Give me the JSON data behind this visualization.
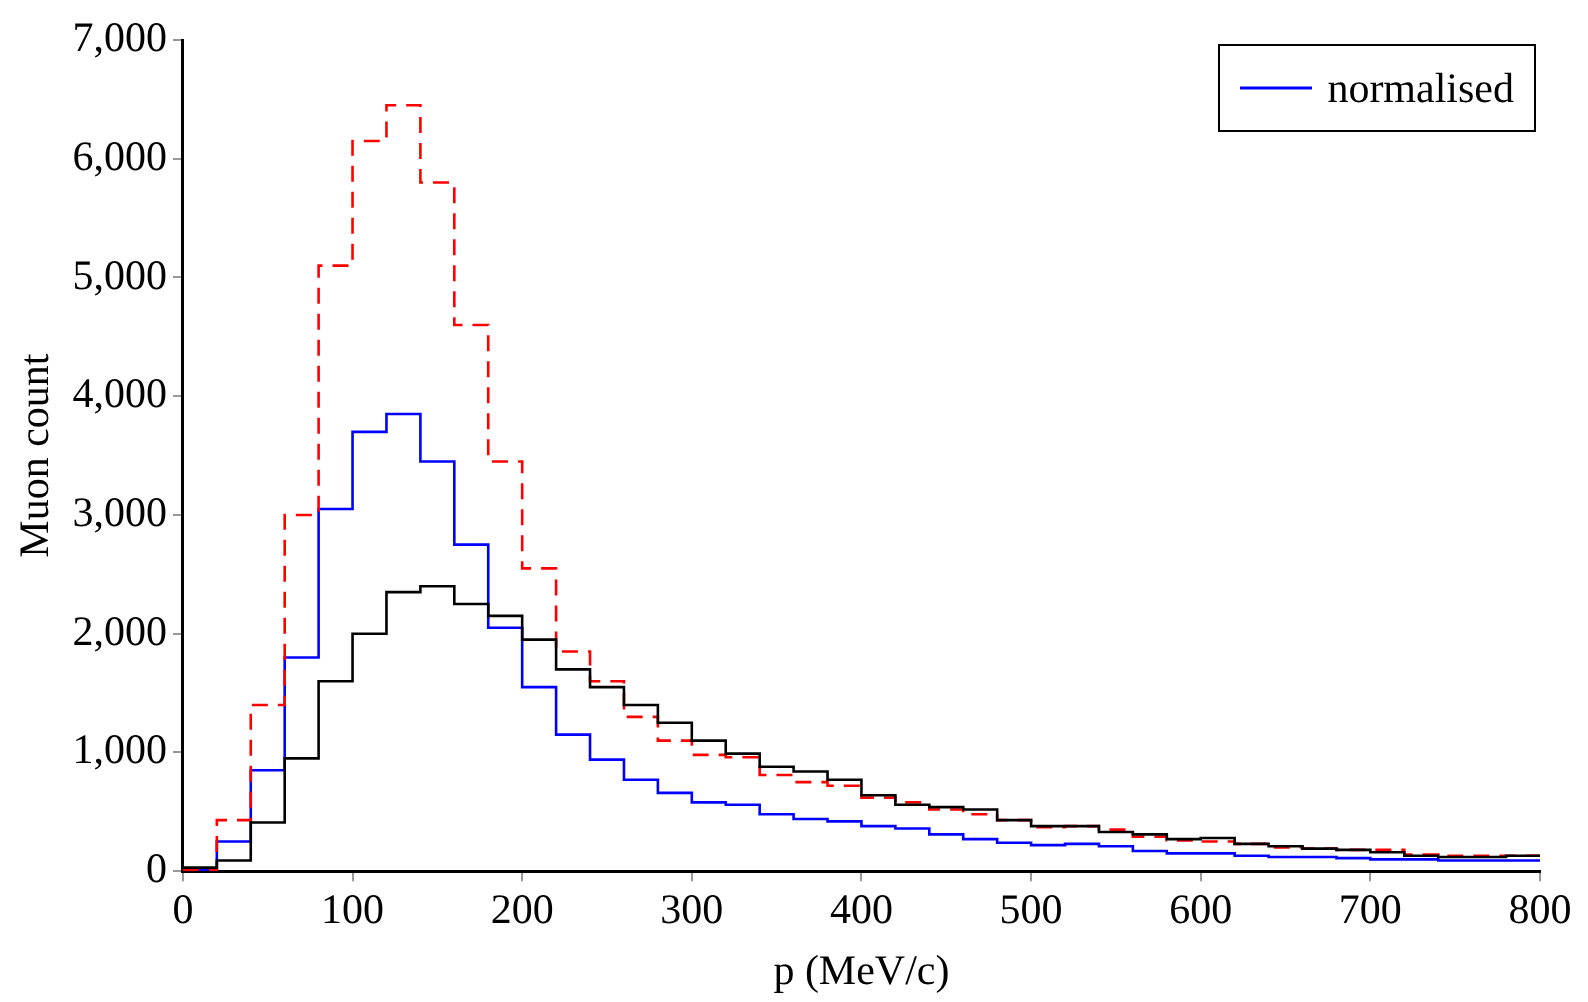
{
  "chart_data": {
    "type": "histogram",
    "xlabel": "p (MeV/c)",
    "ylabel": "Muon count",
    "bins": [
      0,
      20,
      40,
      60,
      80,
      100,
      120,
      140,
      160,
      180,
      200,
      220,
      240,
      260,
      280,
      300,
      320,
      340,
      360,
      380,
      400,
      420,
      440,
      460,
      480,
      500,
      520,
      540,
      560,
      580,
      600,
      620,
      640,
      660,
      680,
      700,
      720,
      740,
      760,
      780,
      800
    ],
    "series": [
      {
        "color": "#000000",
        "line_style": "solid",
        "values": [
          30,
          90,
          410,
          950,
          1600,
          2000,
          2350,
          2400,
          2250,
          2150,
          1950,
          1700,
          1550,
          1400,
          1250,
          1100,
          990,
          880,
          840,
          770,
          640,
          560,
          540,
          520,
          430,
          380,
          380,
          330,
          310,
          270,
          280,
          230,
          210,
          190,
          180,
          160,
          130,
          120,
          120,
          130
        ]
      },
      {
        "color": "#ff0000",
        "line_style": "dashed",
        "values": [
          10,
          430,
          1400,
          3000,
          5100,
          6150,
          6450,
          5800,
          4600,
          3450,
          2550,
          1850,
          1600,
          1300,
          1100,
          980,
          960,
          810,
          750,
          720,
          620,
          580,
          520,
          480,
          430,
          370,
          380,
          350,
          290,
          260,
          250,
          230,
          200,
          190,
          180,
          180,
          140,
          130,
          130,
          130
        ]
      },
      {
        "name": "normalised",
        "color": "#0000ff",
        "line_style": "solid",
        "values": [
          10,
          250,
          850,
          1800,
          3050,
          3700,
          3850,
          3450,
          2750,
          2050,
          1550,
          1150,
          940,
          770,
          660,
          580,
          560,
          480,
          440,
          420,
          380,
          360,
          310,
          270,
          240,
          220,
          230,
          210,
          170,
          150,
          150,
          130,
          120,
          120,
          110,
          100,
          100,
          90,
          90,
          90
        ]
      }
    ],
    "xlim": [
      0,
      800
    ],
    "xticks": [
      0,
      100,
      200,
      300,
      400,
      500,
      600,
      700,
      800
    ],
    "ylim": [
      0,
      7000
    ],
    "yticks": [
      0,
      {
        "value": 1000,
        "label": "1,000"
      },
      {
        "value": 2000,
        "label": "2,000"
      },
      {
        "value": 3000,
        "label": "3,000"
      },
      {
        "value": 4000,
        "label": "4,000"
      },
      {
        "value": 5000,
        "label": "5,000"
      },
      {
        "value": 6000,
        "label": "6,000"
      },
      {
        "value": 7000,
        "label": "7,000"
      }
    ],
    "grid": false,
    "legend": "top right"
  }
}
